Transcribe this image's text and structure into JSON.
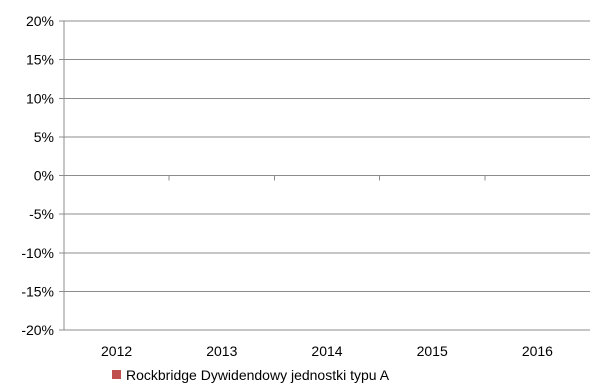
{
  "chart_data": {
    "type": "bar",
    "categories": [
      "2012",
      "2013",
      "2014",
      "2015",
      "2016"
    ],
    "series": [
      {
        "name": "Rockbridge Dywidendowy jednostki typu A",
        "values": [
          null,
          null,
          null,
          null,
          null
        ],
        "color": "#c0504d"
      }
    ],
    "y_ticks": [
      "20%",
      "15%",
      "10%",
      "5%",
      "0%",
      "-5%",
      "-10%",
      "-15%",
      "-20%"
    ],
    "ylim": [
      -20,
      20
    ],
    "ytick_step": 5,
    "grid": true,
    "legend_position": "bottom-center"
  }
}
